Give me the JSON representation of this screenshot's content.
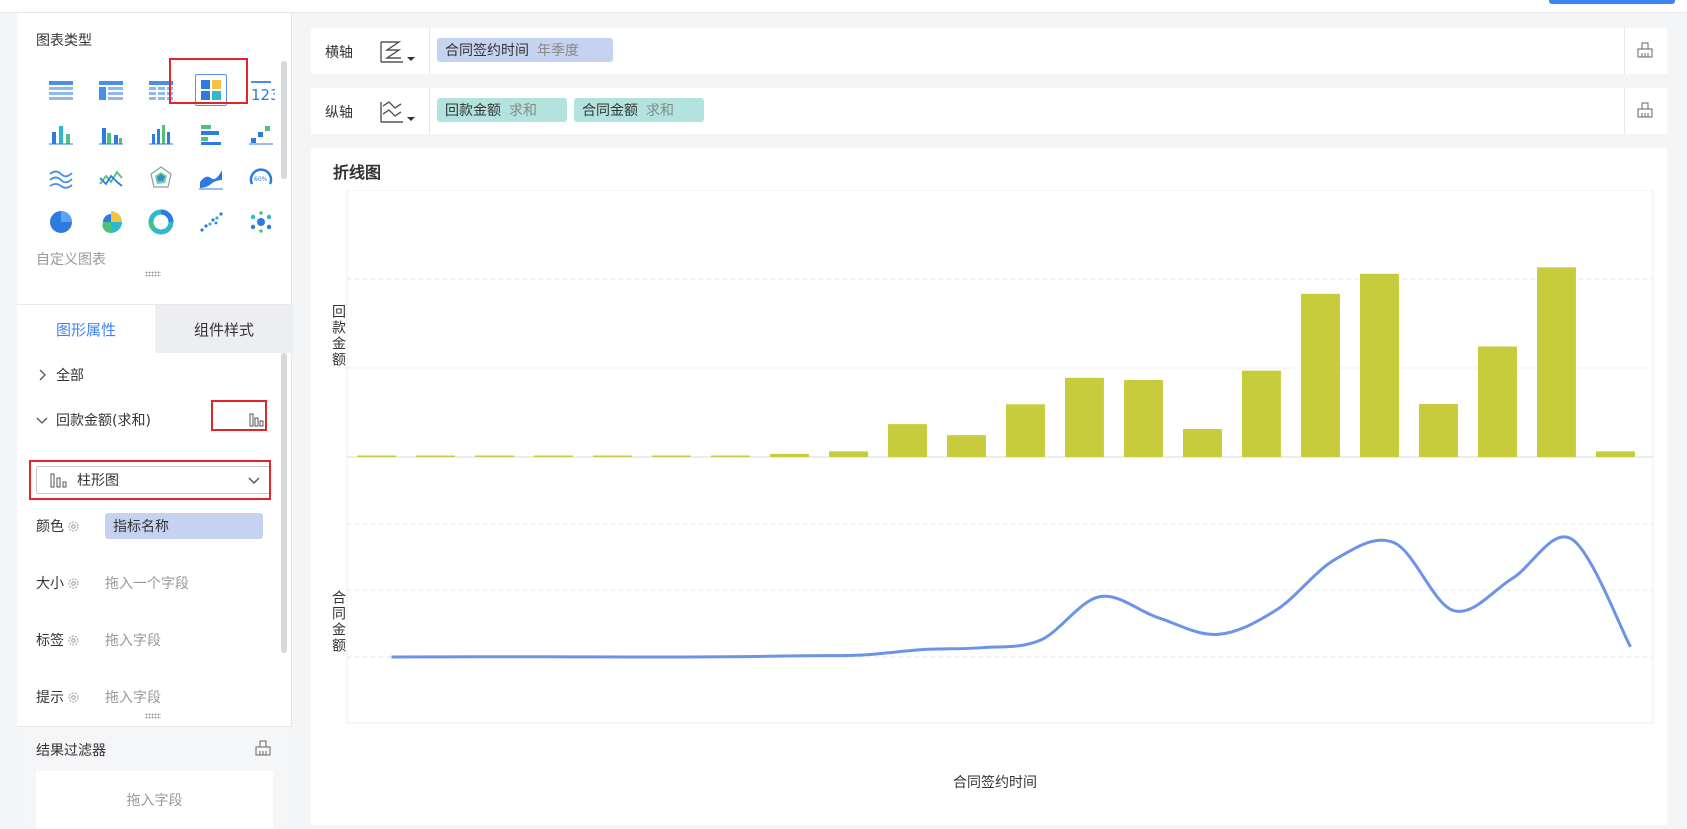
{
  "left": {
    "chart_type_title": "图表类型",
    "custom_chart_label": "自定义图表",
    "tabs": {
      "active": "图形属性",
      "inactive": "组件样式"
    },
    "tree": {
      "all": "全部",
      "measure": "回款金额(求和)"
    },
    "chart_type_select": "柱形图",
    "props": {
      "color_label": "颜色",
      "color_value": "指标名称",
      "size_label": "大小",
      "size_placeholder": "拖入一个字段",
      "label_label": "标签",
      "label_placeholder": "拖入字段",
      "tooltip_label": "提示",
      "tooltip_placeholder": "拖入字段"
    },
    "filter": {
      "title": "结果过滤器",
      "placeholder": "拖入字段"
    }
  },
  "axes": {
    "x": {
      "label": "横轴",
      "field": "合同签约时间",
      "agg": "年季度"
    },
    "y": {
      "label": "纵轴",
      "fields": [
        {
          "name": "回款金额",
          "agg": "求和"
        },
        {
          "name": "合同金额",
          "agg": "求和"
        }
      ]
    }
  },
  "chart": {
    "title": "折线图"
  },
  "chart_data": {
    "type": "bar",
    "title": "折线图",
    "xlabel": "合同签约时间",
    "categories": [
      "",
      "",
      "",
      "",
      "",
      "",
      "",
      "",
      "",
      "",
      "",
      "",
      "",
      "",
      "",
      "",
      "",
      "",
      "",
      "",
      "",
      ""
    ],
    "series": [
      {
        "name": "回款金额",
        "type": "bar",
        "color": "#c6cc3c",
        "values": [
          0.3,
          0.3,
          0.3,
          0.3,
          0.3,
          0.3,
          0.3,
          1.2,
          2.2,
          12.8,
          8.5,
          20.5,
          30.8,
          30.0,
          10.9,
          33.6,
          63.5,
          71.3,
          20.6,
          43.0,
          73.8,
          2.2
        ]
      },
      {
        "name": "合同金额",
        "type": "line",
        "color": "#6d93e8",
        "values": [
          0.0,
          0.1,
          0.2,
          0.1,
          0.0,
          0.0,
          0.3,
          0.9,
          1.5,
          5.4,
          6.8,
          12.3,
          44.0,
          28.6,
          16.5,
          34.4,
          71.4,
          83.3,
          33.9,
          57.4,
          86.2,
          7.4
        ]
      }
    ],
    "ylabel_top": "回款金额",
    "ylabel_bottom": "合同金额",
    "ylim_top": [
      0,
      100
    ],
    "ylim_bottom": [
      0,
      100
    ],
    "grid": true,
    "legend": "none"
  }
}
